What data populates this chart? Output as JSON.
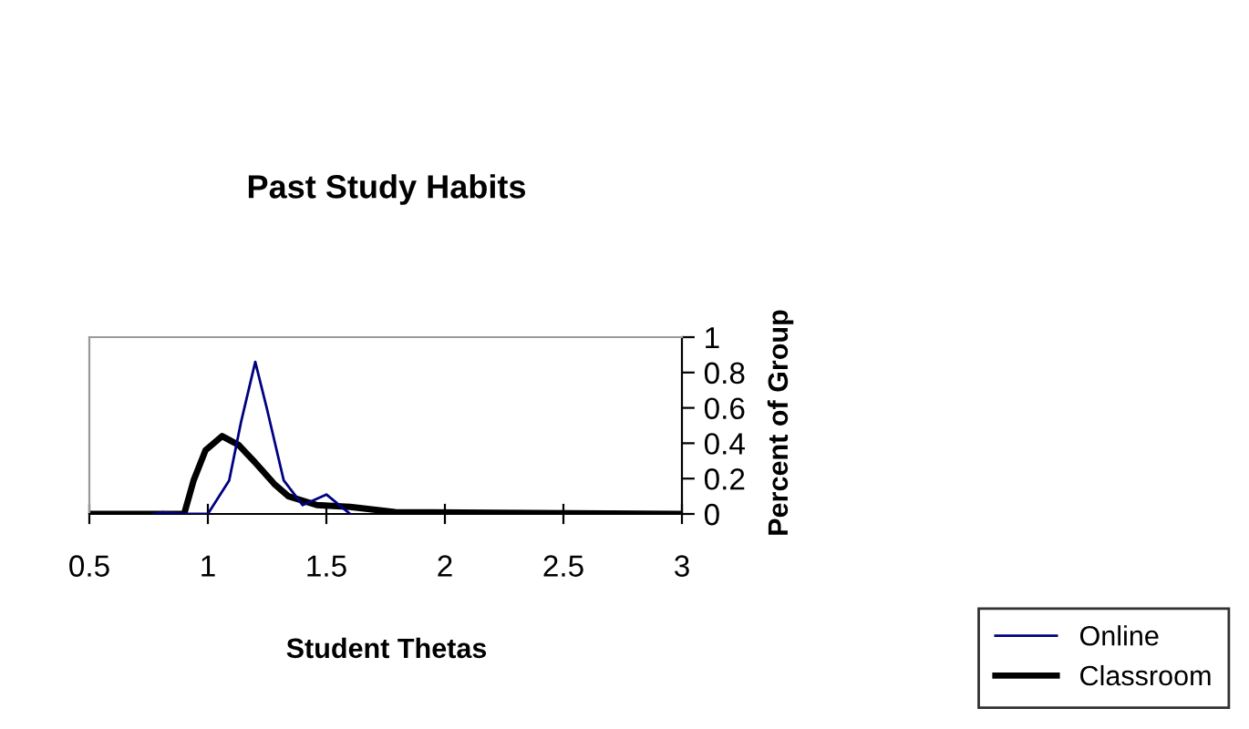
{
  "chart_data": {
    "type": "line",
    "title": "Past Study Habits",
    "xlabel": "Student Thetas",
    "ylabel": "Percent of Group",
    "xlim": [
      0.5,
      3
    ],
    "ylim": [
      0,
      1
    ],
    "xticks": [
      0.5,
      1,
      1.5,
      2,
      2.5,
      3
    ],
    "yticks": [
      0,
      0.2,
      0.4,
      0.6,
      0.8,
      1
    ],
    "grid": false,
    "legend": "bottom right",
    "series": [
      {
        "name": "Online",
        "color": "#000080",
        "x": [
          0.77,
          0.81,
          0.89,
          1.0,
          1.09,
          1.14,
          1.2,
          1.25,
          1.32,
          1.4,
          1.5,
          1.6
        ],
        "values": [
          0,
          0.01,
          0,
          0,
          0.19,
          0.52,
          0.86,
          0.59,
          0.19,
          0.05,
          0.11,
          0
        ]
      },
      {
        "name": "Classroom",
        "color": "#000000",
        "x": [
          0.5,
          0.9,
          0.94,
          0.99,
          1.06,
          1.13,
          1.2,
          1.28,
          1.34,
          1.46,
          1.6,
          1.79,
          3
        ],
        "values": [
          0,
          0,
          0.19,
          0.36,
          0.44,
          0.39,
          0.29,
          0.17,
          0.1,
          0.05,
          0.04,
          0.01,
          0
        ]
      }
    ]
  }
}
